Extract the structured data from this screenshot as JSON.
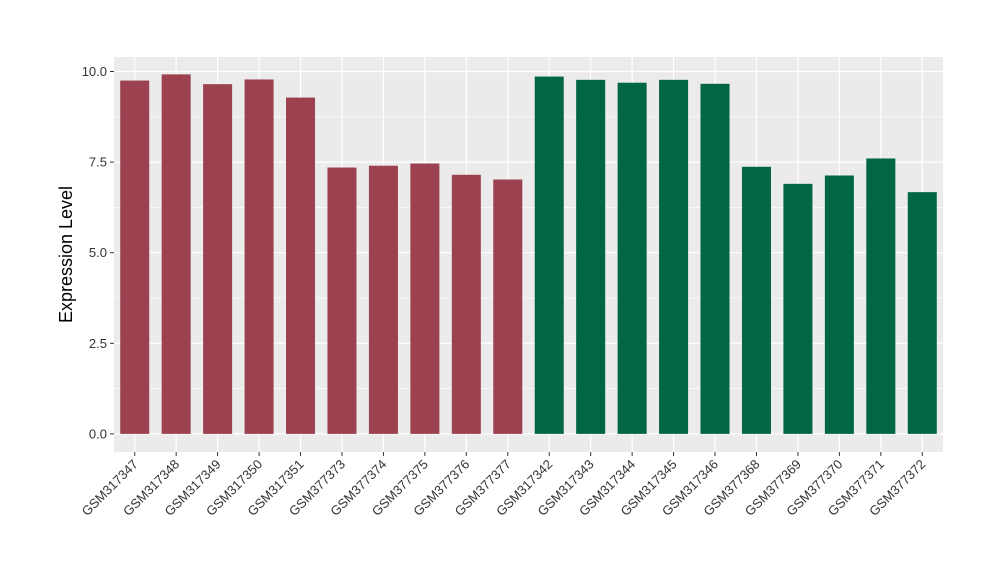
{
  "chart_data": {
    "type": "bar",
    "title": "",
    "xlabel": "",
    "ylabel": "Expression Level",
    "ylim": [
      -0.5,
      10.4
    ],
    "yticks": [
      0.0,
      2.5,
      5.0,
      7.5,
      10.0
    ],
    "ytick_labels": [
      "0.0",
      "2.5",
      "5.0",
      "7.5",
      "10.0"
    ],
    "grid": true,
    "legend": "none",
    "categories": [
      "GSM317347",
      "GSM317348",
      "GSM317349",
      "GSM317350",
      "GSM317351",
      "GSM377373",
      "GSM377374",
      "GSM377375",
      "GSM377376",
      "GSM377377",
      "GSM317342",
      "GSM317343",
      "GSM317344",
      "GSM317345",
      "GSM317346",
      "GSM377368",
      "GSM377369",
      "GSM377370",
      "GSM377371",
      "GSM377372"
    ],
    "values": [
      9.75,
      9.92,
      9.65,
      9.78,
      9.28,
      7.35,
      7.4,
      7.46,
      7.15,
      7.02,
      9.86,
      9.77,
      9.69,
      9.77,
      9.66,
      7.37,
      6.9,
      7.13,
      7.6,
      6.67
    ],
    "bar_colors": [
      "#9b414f",
      "#9b414f",
      "#9b414f",
      "#9b414f",
      "#9b414f",
      "#9b414f",
      "#9b414f",
      "#9b414f",
      "#9b414f",
      "#9b414f",
      "#006644",
      "#006644",
      "#006644",
      "#006644",
      "#006644",
      "#006644",
      "#006644",
      "#006644",
      "#006644",
      "#006644"
    ],
    "panel_background": "#ebebeb",
    "grid_color": "#ffffff"
  }
}
